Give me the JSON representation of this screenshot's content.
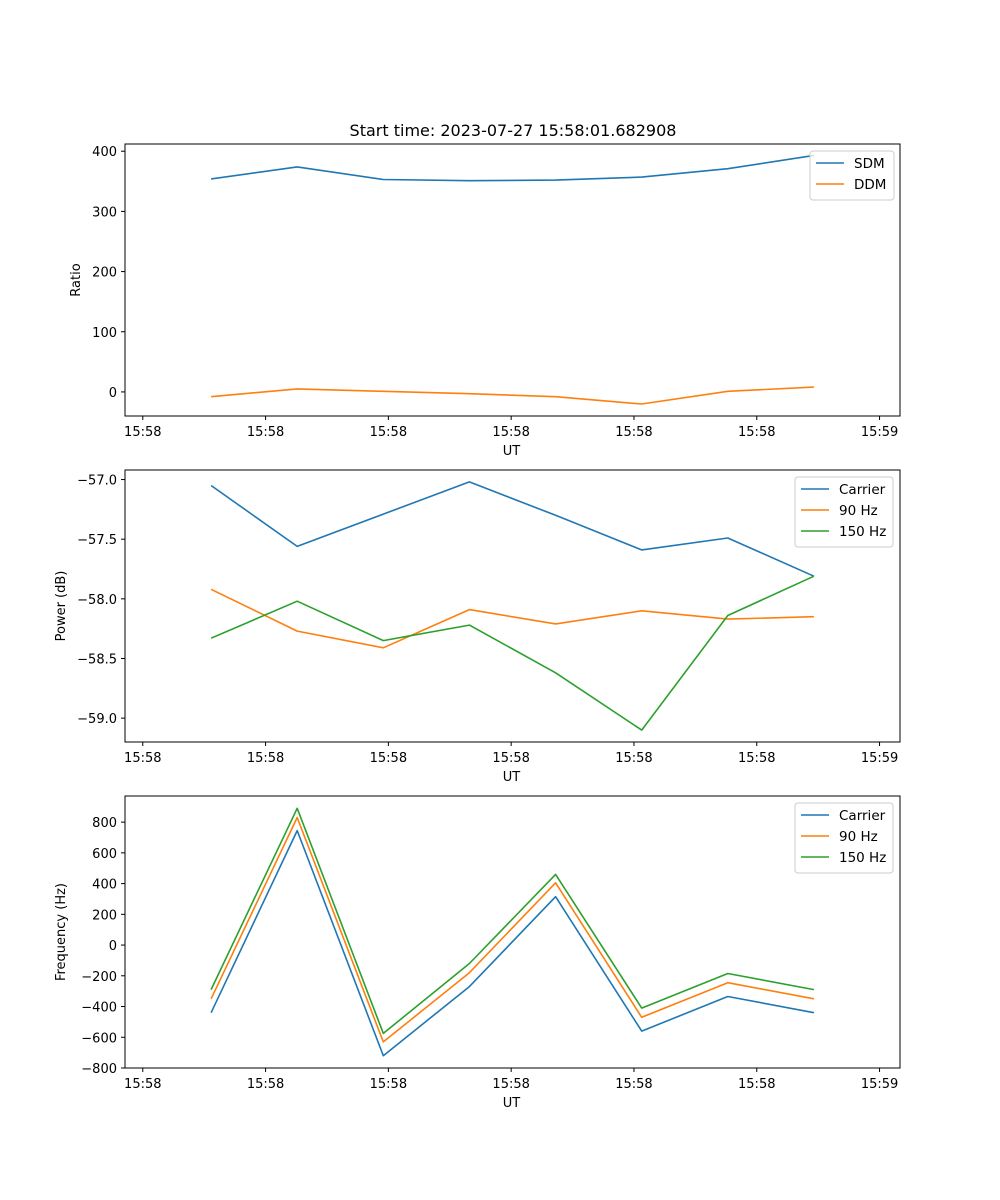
{
  "figure_title": "Start time: 2023-07-27 15:58:01.682908",
  "colors": {
    "blue": "#1f77b4",
    "orange": "#ff7f0e",
    "green": "#2ca02c"
  },
  "chart_data": [
    {
      "type": "line",
      "title": "Start time: 2023-07-27 15:58:01.682908",
      "xlabel": "UT",
      "ylabel": "Ratio",
      "x_ticks": [
        "15:58",
        "15:58",
        "15:58",
        "15:58",
        "15:58",
        "15:58",
        "15:59"
      ],
      "x": [
        1,
        2,
        3,
        4,
        5,
        6,
        7,
        8
      ],
      "xlim": [
        0,
        9
      ],
      "ylim": [
        -40,
        412
      ],
      "y_ticks": [
        400,
        300,
        200,
        100,
        0
      ],
      "y_tick_labels": [
        "400",
        "300",
        "200",
        "100",
        "0"
      ],
      "series": [
        {
          "name": "SDM",
          "color": "#1f77b4",
          "values": [
            354,
            374,
            353,
            351,
            352,
            357,
            371,
            393
          ]
        },
        {
          "name": "DDM",
          "color": "#ff7f0e",
          "values": [
            -8,
            5,
            1,
            -3,
            -8,
            -20,
            1,
            8
          ]
        }
      ]
    },
    {
      "type": "line",
      "title": "",
      "xlabel": "UT",
      "ylabel": "Power (dB)",
      "x_ticks": [
        "15:58",
        "15:58",
        "15:58",
        "15:58",
        "15:58",
        "15:58",
        "15:59"
      ],
      "x": [
        1,
        2,
        3,
        4,
        5,
        6,
        7,
        8
      ],
      "xlim": [
        0,
        9
      ],
      "ylim": [
        -59.2,
        -56.92
      ],
      "y_ticks": [
        -57.0,
        -57.5,
        -58.0,
        -58.5,
        -59.0
      ],
      "y_tick_labels": [
        "−57.0",
        "−57.5",
        "−58.0",
        "−58.5",
        "−59.0"
      ],
      "series": [
        {
          "name": "Carrier",
          "color": "#1f77b4",
          "values": [
            -57.05,
            -57.56,
            -57.29,
            -57.02,
            -57.3,
            -57.59,
            -57.49,
            -57.81
          ]
        },
        {
          "name": "90 Hz",
          "color": "#ff7f0e",
          "values": [
            -57.92,
            -58.27,
            -58.41,
            -58.09,
            -58.21,
            -58.1,
            -58.17,
            -58.15
          ]
        },
        {
          "name": "150 Hz",
          "color": "#2ca02c",
          "values": [
            -58.33,
            -58.02,
            -58.35,
            -58.22,
            -58.62,
            -59.1,
            -58.14,
            -57.81
          ]
        }
      ]
    },
    {
      "type": "line",
      "title": "",
      "xlabel": "UT",
      "ylabel": "Frequency (Hz)",
      "x_ticks": [
        "15:58",
        "15:58",
        "15:58",
        "15:58",
        "15:58",
        "15:58",
        "15:59"
      ],
      "x": [
        1,
        2,
        3,
        4,
        5,
        6,
        7,
        8
      ],
      "xlim": [
        0,
        9
      ],
      "ylim": [
        -800,
        970
      ],
      "y_ticks": [
        800,
        600,
        400,
        200,
        0,
        -200,
        -400,
        -600,
        -800
      ],
      "y_tick_labels": [
        "800",
        "600",
        "400",
        "200",
        "0",
        "−200",
        "−400",
        "−600",
        "−800"
      ],
      "series": [
        {
          "name": "Carrier",
          "color": "#1f77b4",
          "values": [
            -440,
            745,
            -720,
            -270,
            315,
            -560,
            -335,
            -440
          ]
        },
        {
          "name": "90 Hz",
          "color": "#ff7f0e",
          "values": [
            -350,
            830,
            -630,
            -180,
            405,
            -470,
            -245,
            -350
          ]
        },
        {
          "name": "150 Hz",
          "color": "#2ca02c",
          "values": [
            -290,
            890,
            -575,
            -120,
            460,
            -410,
            -185,
            -290
          ]
        }
      ]
    }
  ]
}
